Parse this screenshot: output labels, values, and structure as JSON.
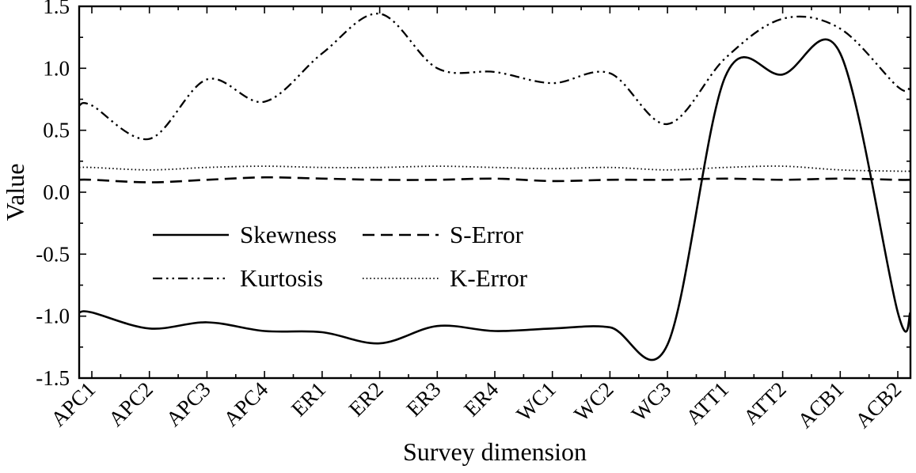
{
  "chart_data": {
    "type": "line",
    "title": "",
    "xlabel": "Survey dimension",
    "ylabel": "Value",
    "ylim": [
      -1.5,
      1.5
    ],
    "ytick_step": 0.5,
    "ytick_minor_step": 0.25,
    "grid": false,
    "background": "#ffffff",
    "line_color": "#000000",
    "categories": [
      "APC1",
      "APC2",
      "APC3",
      "APC4",
      "ER1",
      "ER2",
      "ER3",
      "ER4",
      "WC1",
      "WC2",
      "WC3",
      "ATT1",
      "ATT2",
      "ACB1",
      "ACB2"
    ],
    "series": [
      {
        "name": "Skewness",
        "line_style": "solid",
        "values": [
          -0.97,
          -1.1,
          -1.05,
          -1.12,
          -1.13,
          -1.22,
          -1.08,
          -1.12,
          -1.1,
          -1.09,
          -1.23,
          0.93,
          0.95,
          1.12,
          -0.97
        ]
      },
      {
        "name": "Kurtosis",
        "line_style": "dashdotdot",
        "values": [
          0.7,
          0.43,
          0.91,
          0.73,
          1.12,
          1.44,
          1.0,
          0.97,
          0.88,
          0.96,
          0.55,
          1.08,
          1.4,
          1.32,
          0.85
        ]
      },
      {
        "name": "S-Error",
        "line_style": "dashed",
        "values": [
          0.1,
          0.08,
          0.1,
          0.12,
          0.11,
          0.1,
          0.1,
          0.11,
          0.09,
          0.1,
          0.1,
          0.11,
          0.1,
          0.11,
          0.1
        ]
      },
      {
        "name": "K-Error",
        "line_style": "dotted",
        "values": [
          0.2,
          0.18,
          0.2,
          0.21,
          0.2,
          0.2,
          0.21,
          0.2,
          0.19,
          0.2,
          0.18,
          0.2,
          0.21,
          0.18,
          0.17
        ]
      }
    ],
    "legend": {
      "position": "inside-center-left",
      "entries": [
        "Skewness",
        "S-Error",
        "Kurtosis",
        "K-Error"
      ]
    }
  }
}
